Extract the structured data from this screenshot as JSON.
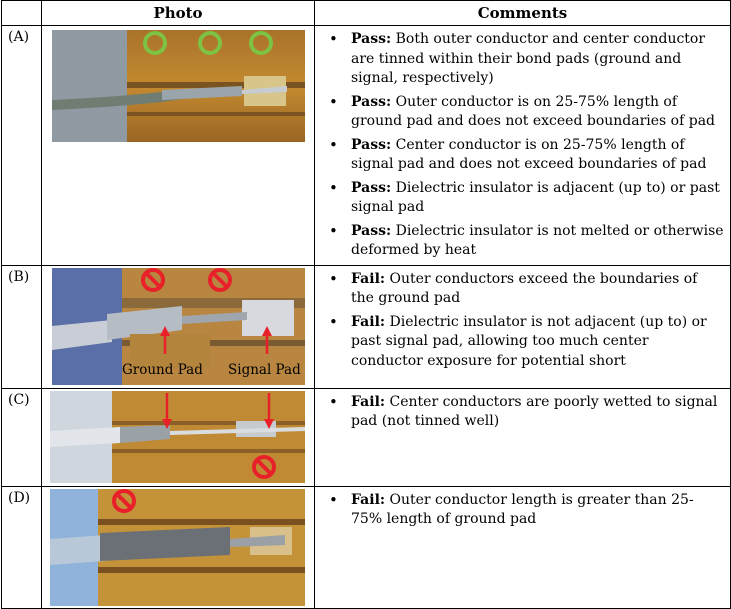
{
  "table": {
    "headers": {
      "photo": "Photo",
      "comments": "Comments"
    },
    "rows": [
      {
        "label": "(A)",
        "photo_annotations": [],
        "bullets": [
          {
            "verdict": "Pass:",
            "text": " Both outer conductor and center conductor are tinned within their bond pads (ground and signal, respectively)"
          },
          {
            "verdict": "Pass:",
            "text": " Outer conductor is on 25-75% length of ground pad and does not exceed boundaries of pad"
          },
          {
            "verdict": "Pass:",
            "text": " Center conductor is on 25-75% length of signal pad and does not exceed boundaries of pad"
          },
          {
            "verdict": "Pass:",
            "text": " Dielectric insulator is adjacent (up to) or past signal pad"
          },
          {
            "verdict": "Pass:",
            "text": " Dielectric insulator is not melted or otherwise deformed by heat"
          }
        ]
      },
      {
        "label": "(B)",
        "photo_annotations": [
          "Ground Pad",
          "Signal Pad"
        ],
        "bullets": [
          {
            "verdict": "Fail:",
            "text": " Outer conductors exceed the boundaries of the ground pad"
          },
          {
            "verdict": "Fail:",
            "text": " Dielectric insulator is not adjacent (up to) or past signal pad, allowing too much center conductor exposure for potential short"
          }
        ]
      },
      {
        "label": "(C)",
        "photo_annotations": [],
        "bullets": [
          {
            "verdict": "Fail:",
            "text": " Center conductors are poorly wetted to signal pad (not tinned well)"
          }
        ]
      },
      {
        "label": "(D)",
        "photo_annotations": [],
        "bullets": [
          {
            "verdict": "Fail:",
            "text": " Outer conductor length is greater than 25-75% length of ground pad"
          }
        ]
      }
    ]
  },
  "colors": {
    "pass_marker": "#7dc242",
    "fail_marker": "#e8202a",
    "arrow": "#e8202a",
    "substrate": "#c9902e",
    "pad_gold": "#d8b45a"
  }
}
